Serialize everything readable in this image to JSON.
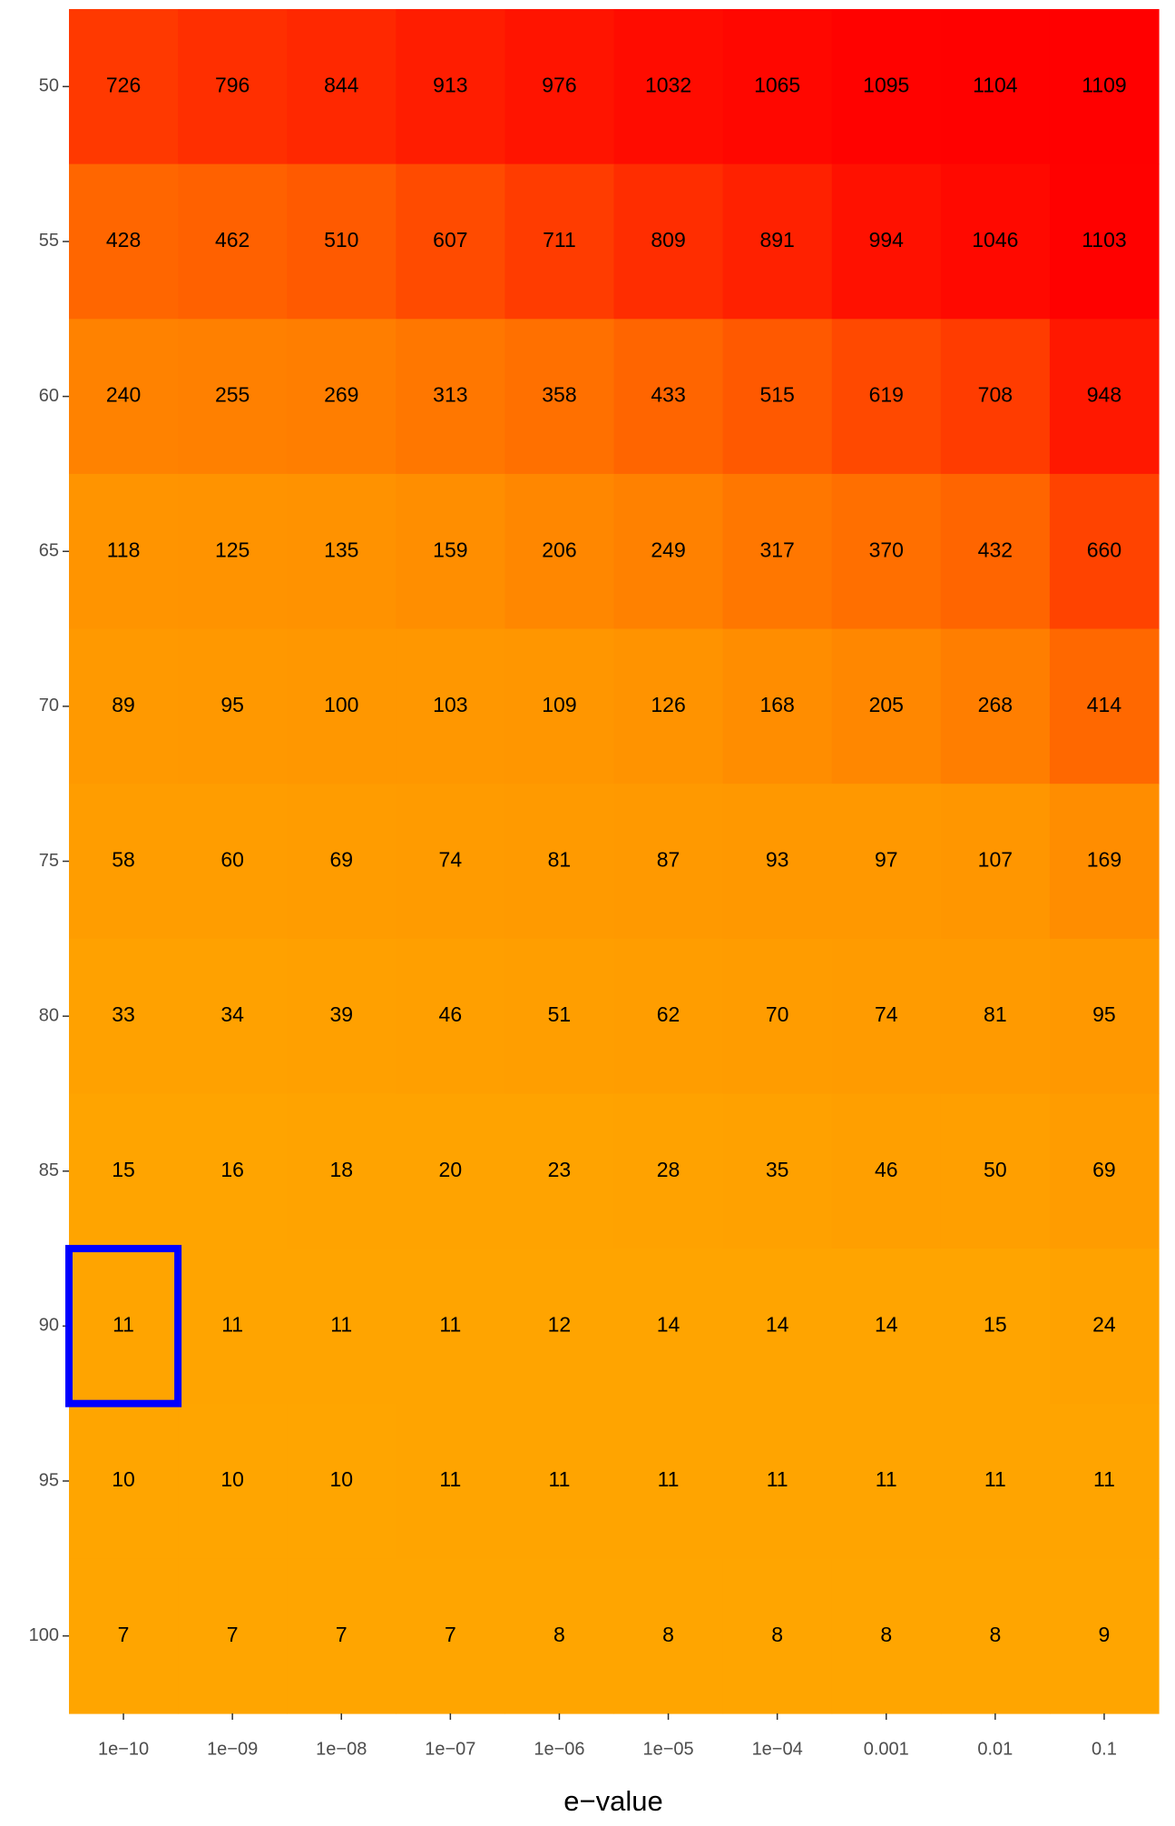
{
  "chart_data": {
    "type": "heatmap",
    "x_label": "e−value",
    "x": [
      "1e−10",
      "1e−09",
      "1e−08",
      "1e−07",
      "1e−06",
      "1e−05",
      "1e−04",
      "0.001",
      "0.01",
      "0.1"
    ],
    "y": [
      50,
      55,
      60,
      65,
      70,
      75,
      80,
      85,
      90,
      95,
      100
    ],
    "values": [
      [
        726,
        796,
        844,
        913,
        976,
        1032,
        1065,
        1095,
        1104,
        1109
      ],
      [
        428,
        462,
        510,
        607,
        711,
        809,
        891,
        994,
        1046,
        1103
      ],
      [
        240,
        255,
        269,
        313,
        358,
        433,
        515,
        619,
        708,
        948
      ],
      [
        118,
        125,
        135,
        159,
        206,
        249,
        317,
        370,
        432,
        660
      ],
      [
        89,
        95,
        100,
        103,
        109,
        126,
        168,
        205,
        268,
        414
      ],
      [
        58,
        60,
        69,
        74,
        81,
        87,
        93,
        97,
        107,
        169
      ],
      [
        33,
        34,
        39,
        46,
        51,
        62,
        70,
        74,
        81,
        95
      ],
      [
        15,
        16,
        18,
        20,
        23,
        28,
        35,
        46,
        50,
        69
      ],
      [
        11,
        11,
        11,
        11,
        12,
        14,
        14,
        14,
        15,
        24
      ],
      [
        10,
        10,
        10,
        11,
        11,
        11,
        11,
        11,
        11,
        11
      ],
      [
        7,
        7,
        7,
        7,
        8,
        8,
        8,
        8,
        8,
        9
      ]
    ],
    "color_low": "#ffa500",
    "color_high": "#ff0000",
    "highlight": {
      "x": "1e−10",
      "y": 90,
      "color": "#0000ff"
    }
  }
}
